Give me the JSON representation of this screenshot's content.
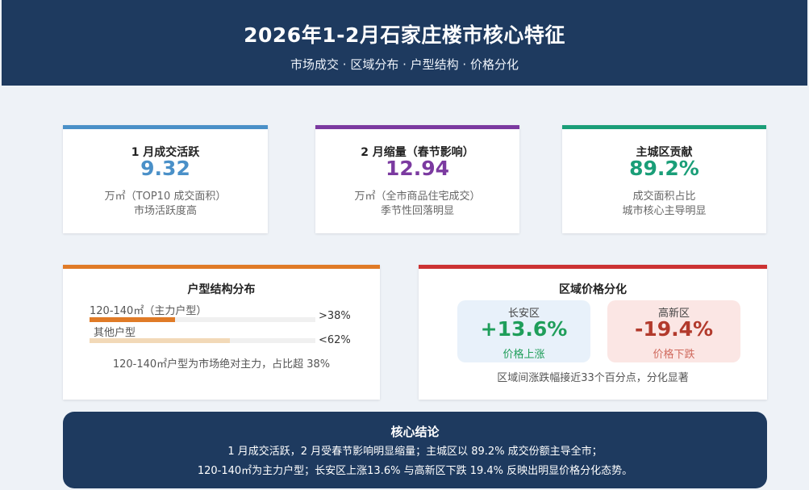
{
  "header": {
    "title": "2026年1-2月石家庄楼市核心特征",
    "subtitle": "市场成交 · 区域分布 · 户型结构 · 价格分化",
    "bg_color": "#1e3a5f"
  },
  "stats": [
    {
      "label": "1 月成交活跃",
      "value": "9.32",
      "desc1": "万㎡（TOP10 成交面积）",
      "desc2": "市场活跃度高",
      "color": "#4a90c8"
    },
    {
      "label": "2 月缩量（春节影响）",
      "value": "12.94",
      "desc1": "万㎡（全市商品住宅成交）",
      "desc2": "季节性回落明显",
      "color": "#7b3aa0"
    },
    {
      "label": "主城区贡献",
      "value": "89.2%",
      "desc1": "成交面积占比",
      "desc2": "城市核心主导明显",
      "color": "#1a9e78"
    }
  ],
  "unit_structure": {
    "title": "户型结构分布",
    "accent_color": "#e07b27",
    "rows": [
      {
        "label": "120-140㎡（主力户型）",
        "percent_text": ">38%",
        "fraction": 0.38,
        "color": "#e07b27"
      },
      {
        "label": "其他户型",
        "percent_text": "<62%",
        "fraction": 0.62,
        "color": "#f2d9b8"
      }
    ],
    "note": "120-140㎡户型为市场绝对主力，占比超 38%"
  },
  "price_divergence": {
    "title": "区域价格分化",
    "accent_color": "#cc3333",
    "districts": [
      {
        "name": "长安区",
        "change": "+13.6%",
        "desc": "价格上涨",
        "value_color": "#1f9e5a",
        "bg_color": "#e8f1fa"
      },
      {
        "name": "高新区",
        "change": "-19.4%",
        "desc": "价格下跌",
        "value_color": "#b23a2c",
        "bg_color": "#fbe6e4"
      }
    ],
    "note": "区域间涨跌幅接近33个百分点，分化显著"
  },
  "conclusion": {
    "title": "核心结论",
    "line1": "1 月成交活跃，2 月受春节影响明显缩量；主城区以 89.2% 成交份额主导全市；",
    "line2": "120-140㎡为主力户型；长安区上涨13.6% 与高新区下跌 19.4% 反映出明显价格分化态势。"
  }
}
